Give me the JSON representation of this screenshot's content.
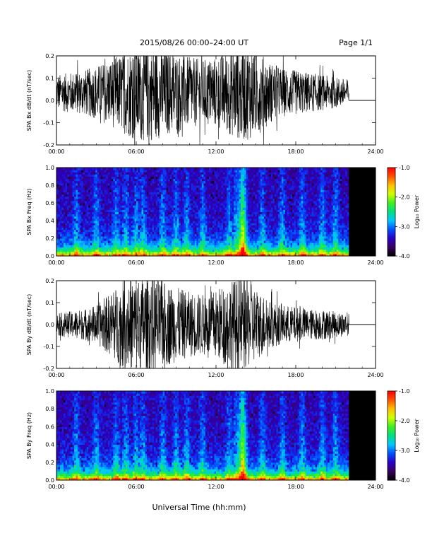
{
  "header": {
    "title": "2015/08/26  00:00–24:00 UT",
    "page": "Page 1/1"
  },
  "footer": {
    "xaxis_title": "Universal Time (hh:mm)"
  },
  "colors": {
    "trace": "#000000",
    "background": "#ffffff",
    "no_data": "#000000",
    "colormap": [
      "#000000",
      "#3a0060",
      "#2a00c8",
      "#0050ff",
      "#00c8ff",
      "#00e080",
      "#40f020",
      "#d0ff00",
      "#ffc000",
      "#ff5000",
      "#ff0000"
    ]
  },
  "chart_data": [
    {
      "type": "line",
      "ylabel": "SPA Bx dB/dt (nT/sec)",
      "xticks": [
        "00:00",
        "06:00",
        "12:00",
        "18:00",
        "24:00"
      ],
      "yticks": [
        "-0.2",
        "-0.1",
        "0.0",
        "0.1",
        "0.2"
      ],
      "xlim": [
        0,
        24
      ],
      "ylim": [
        -0.2,
        0.2
      ],
      "data_end_hour": 22,
      "flat_after_end": 0.0,
      "series": [
        {
          "envelope": {
            "hours": [
              0,
              1,
              2,
              3,
              4,
              5,
              6,
              7,
              8,
              9,
              10,
              11,
              12,
              13,
              14,
              15,
              16,
              17,
              18,
              19,
              20,
              21,
              22
            ],
            "amplitude": [
              0.08,
              0.09,
              0.1,
              0.12,
              0.15,
              0.18,
              0.22,
              0.22,
              0.2,
              0.18,
              0.16,
              0.15,
              0.16,
              0.19,
              0.22,
              0.2,
              0.14,
              0.11,
              0.1,
              0.09,
              0.08,
              0.07,
              0.06
            ],
            "offset": 0.035
          }
        }
      ]
    },
    {
      "type": "heatmap",
      "ylabel": "SPA Bx Freq (Hz)",
      "xticks": [
        "00:00",
        "06:00",
        "12:00",
        "18:00",
        "24:00"
      ],
      "yticks": [
        "0.0",
        "0.2",
        "0.4",
        "0.6",
        "0.8",
        "1.0"
      ],
      "xlim": [
        0,
        24
      ],
      "ylim": [
        0,
        1.0
      ],
      "data_end_hour": 22,
      "colorbar": {
        "label": "Log₁₀ Power",
        "ticks": [
          "-1.0",
          "-2.0",
          "-3.0",
          "-4.0"
        ],
        "range": [
          -4.0,
          -1.0
        ]
      },
      "activity_hours": [
        1.5,
        3.0,
        4.5,
        5.2,
        6.0,
        6.5,
        8.0,
        9.0,
        9.8,
        11.0,
        13.0,
        13.5,
        14.0,
        15.5,
        17.0,
        18.5,
        20.0,
        21.0
      ],
      "main_peak_hour": 14.0
    },
    {
      "type": "line",
      "ylabel": "SPA By dB/dt (nT/sec)",
      "xticks": [
        "00:00",
        "06:00",
        "12:00",
        "18:00",
        "24:00"
      ],
      "yticks": [
        "-0.2",
        "-0.1",
        "0.0",
        "0.1",
        "0.2"
      ],
      "xlim": [
        0,
        24
      ],
      "ylim": [
        -0.2,
        0.2
      ],
      "data_end_hour": 22,
      "flat_after_end": 0.0,
      "series": [
        {
          "envelope": {
            "hours": [
              0,
              1,
              2,
              3,
              4,
              5,
              6,
              7,
              8,
              9,
              10,
              11,
              12,
              13,
              14,
              15,
              16,
              17,
              18,
              19,
              20,
              21,
              22
            ],
            "amplitude": [
              0.05,
              0.06,
              0.07,
              0.09,
              0.14,
              0.2,
              0.22,
              0.22,
              0.2,
              0.17,
              0.15,
              0.14,
              0.16,
              0.2,
              0.22,
              0.17,
              0.11,
              0.09,
              0.08,
              0.07,
              0.07,
              0.06,
              0.05
            ],
            "offset": 0.0
          }
        }
      ]
    },
    {
      "type": "heatmap",
      "ylabel": "SPA By Freq (Hz)",
      "xticks": [
        "00:00",
        "06:00",
        "12:00",
        "18:00",
        "24:00"
      ],
      "yticks": [
        "0.0",
        "0.2",
        "0.4",
        "0.6",
        "0.8",
        "1.0"
      ],
      "xlim": [
        0,
        24
      ],
      "ylim": [
        0,
        1.0
      ],
      "data_end_hour": 22,
      "colorbar": {
        "label": "Log₁₀ Power",
        "ticks": [
          "-1.0",
          "-2.0",
          "-3.0",
          "-4.0"
        ],
        "range": [
          -4.0,
          -1.0
        ]
      },
      "activity_hours": [
        1.5,
        3.0,
        4.5,
        5.2,
        6.0,
        6.5,
        8.0,
        9.0,
        9.8,
        11.0,
        13.0,
        13.5,
        14.0,
        15.5,
        17.0,
        18.5,
        20.0,
        21.0
      ],
      "main_peak_hour": 14.0
    }
  ]
}
